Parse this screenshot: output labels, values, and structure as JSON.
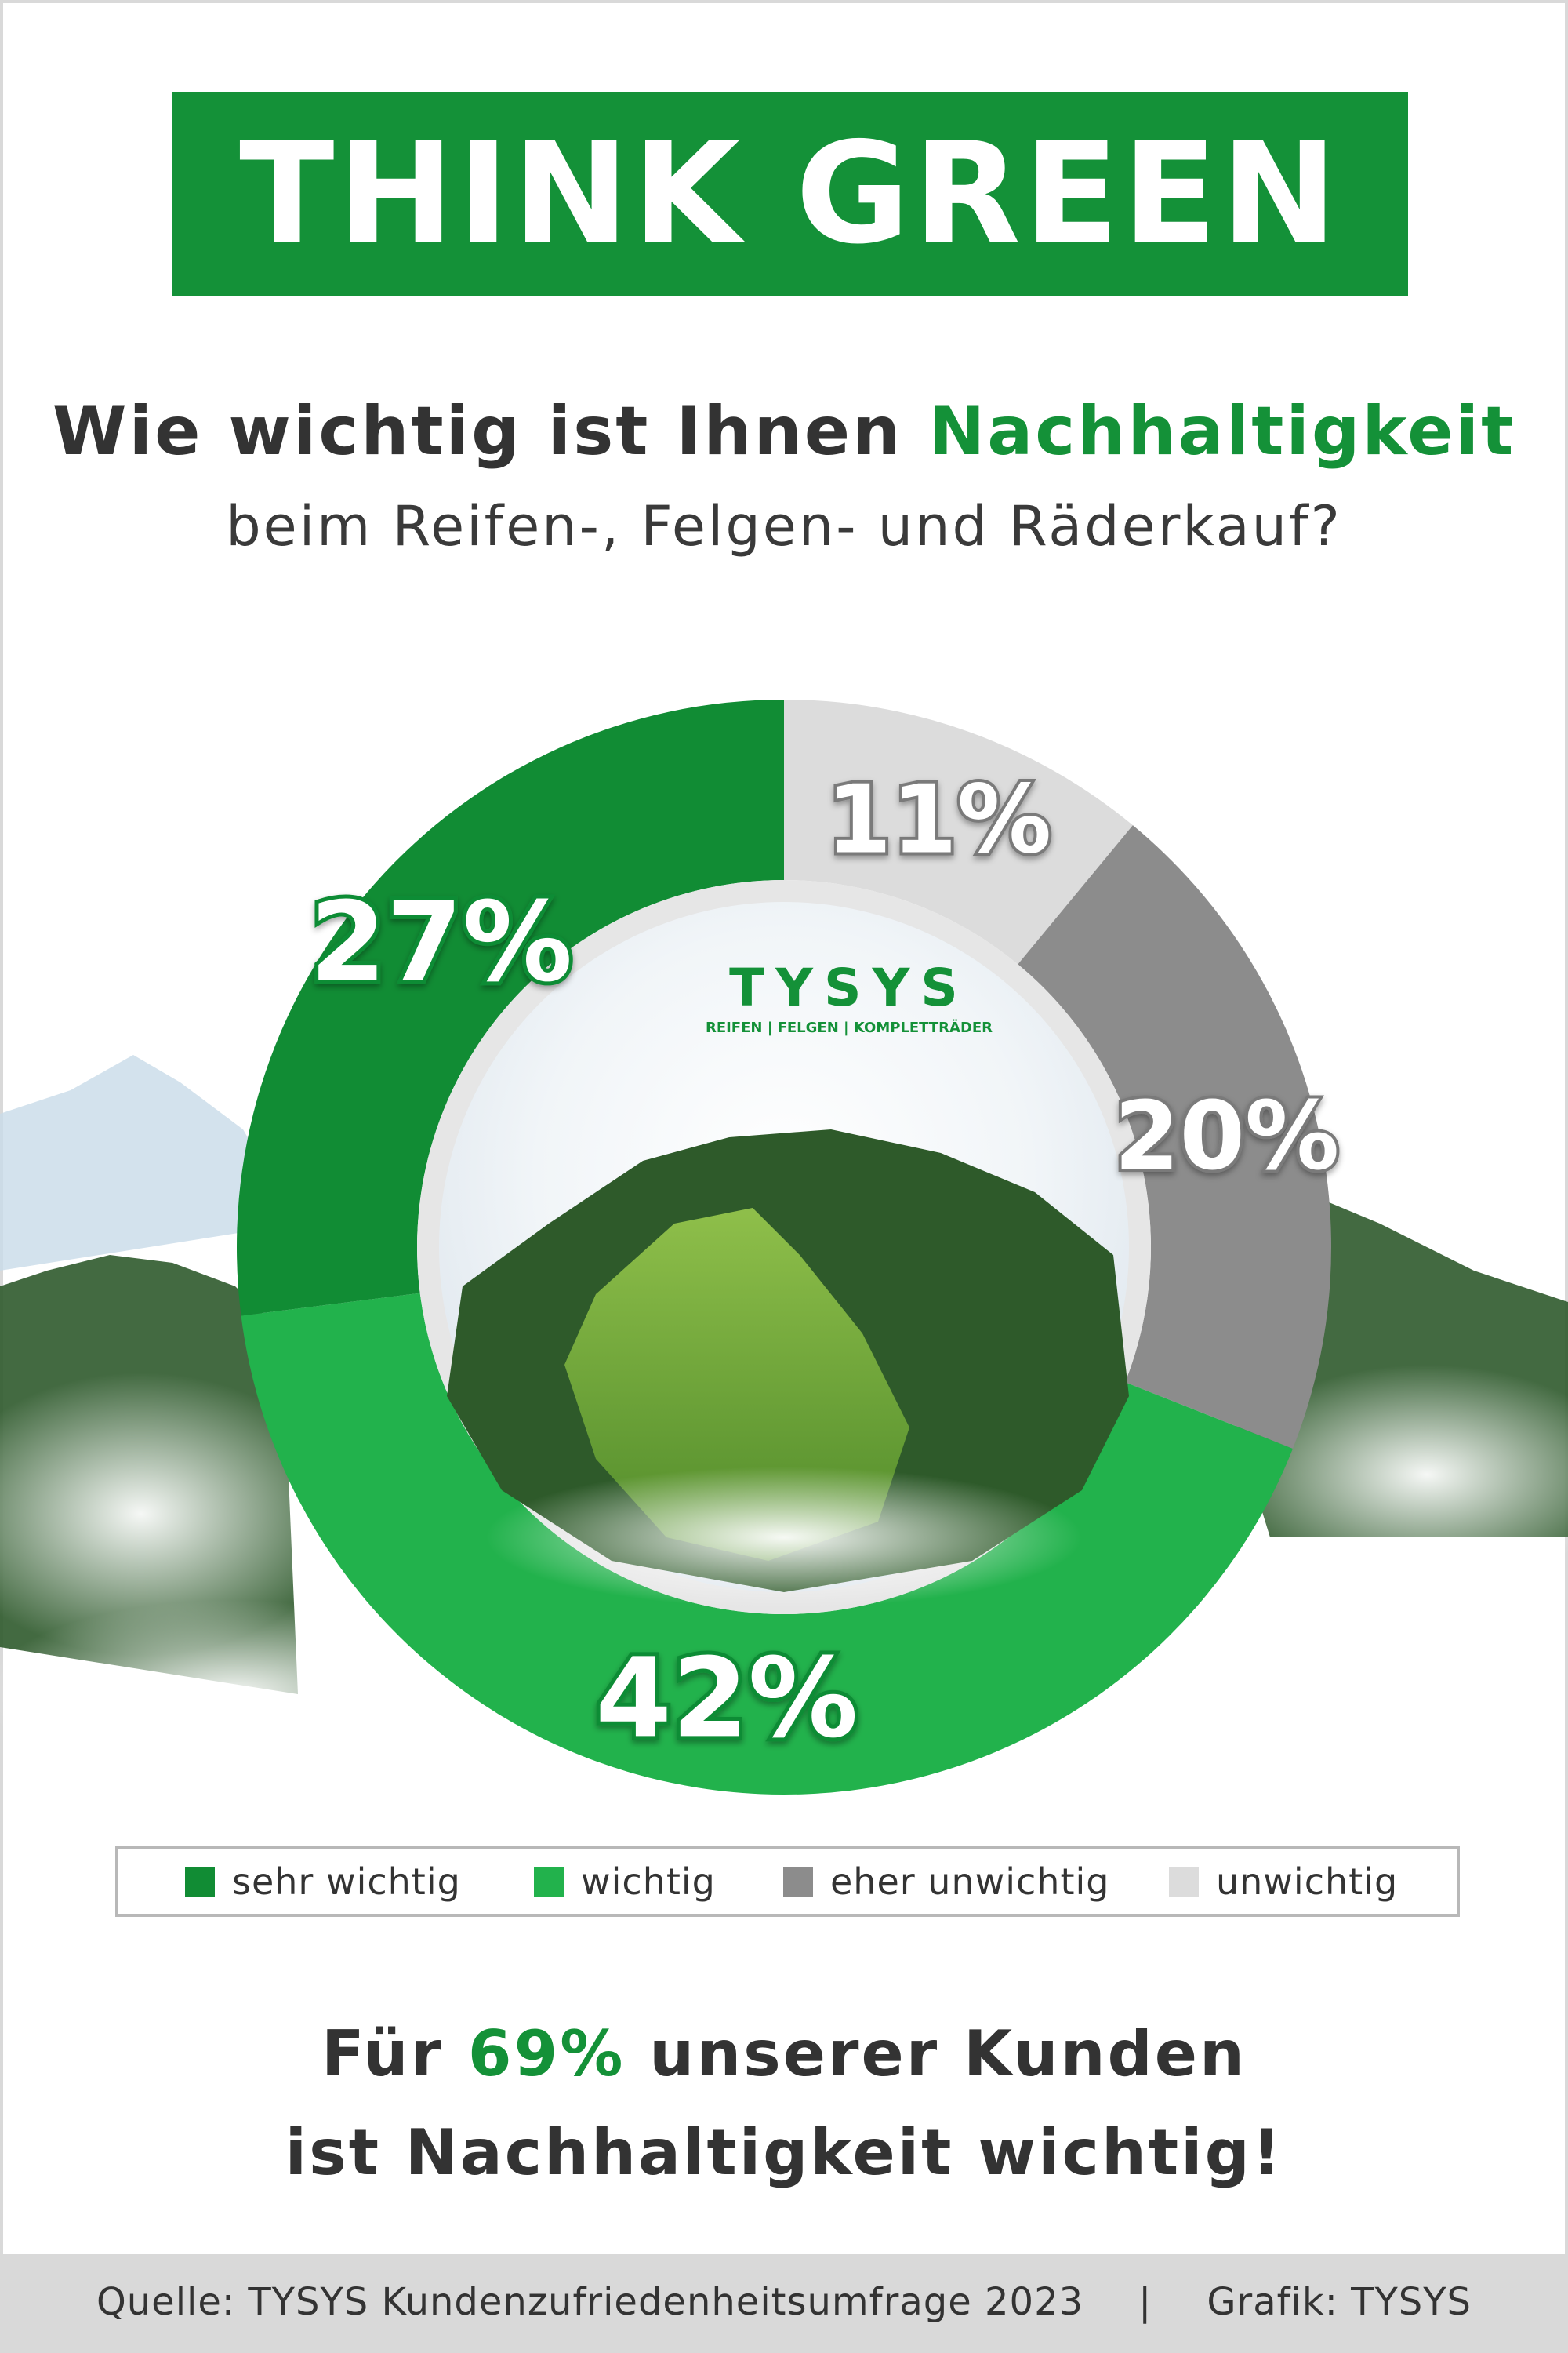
{
  "header": {
    "title": "THINK GREEN"
  },
  "question": {
    "line1_prefix": "Wie wichtig ist Ihnen ",
    "line1_accent": "Nachhaltigkeit",
    "line2": "beim Reifen-, Felgen- und Räderkauf?"
  },
  "logo": {
    "brand": "TYSYS",
    "tagline": "REIFEN | FELGEN | KOMPLETTRÄDER"
  },
  "colors": {
    "sehr_wichtig": "#118c34",
    "wichtig": "#22b24c",
    "eher_unwichtig": "#8c8c8c",
    "unwichtig": "#dcdcdc",
    "accent": "#149138"
  },
  "chart_data": {
    "type": "pie",
    "donut": true,
    "categories": [
      "sehr wichtig",
      "wichtig",
      "eher unwichtig",
      "unwichtig"
    ],
    "values": [
      27,
      42,
      20,
      11
    ],
    "labels": [
      "27%",
      "42%",
      "20%",
      "11%"
    ],
    "legend_position": "bottom"
  },
  "conclusion": {
    "line1_prefix": "Für ",
    "line1_accent": "69%",
    "line1_suffix": " unserer Kunden",
    "line2": "ist Nachhaltigkeit wichtig!"
  },
  "footer": {
    "source": "Quelle: TYSYS Kundenzufriedenheitsumfrage 2023",
    "separator": "|",
    "credit": "Grafik: TYSYS"
  }
}
